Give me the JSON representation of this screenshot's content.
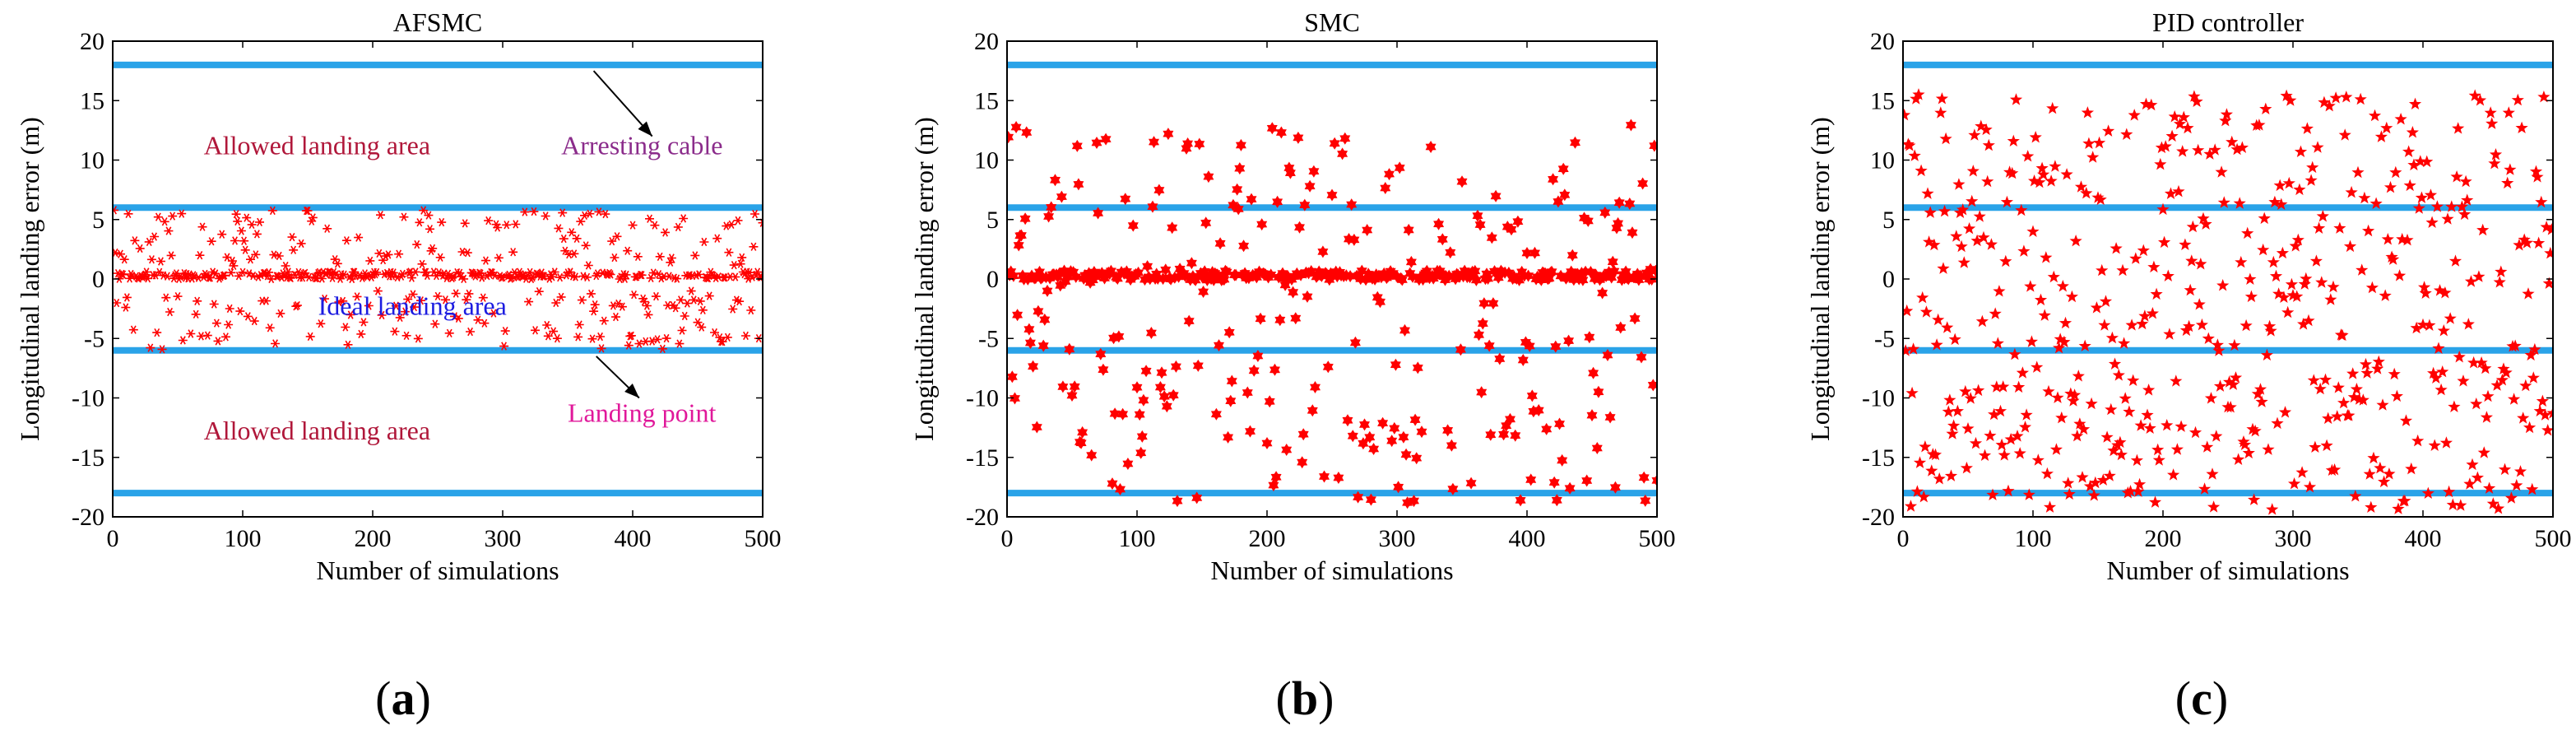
{
  "chart_data": [
    {
      "type": "scatter",
      "panel_label": {
        "open": "(",
        "letter": "a",
        "close": ")"
      },
      "title": "AFSMC",
      "xlabel": "Number of simulations",
      "ylabel": "Longitudinal landing error (m)",
      "xlim": [
        0,
        500
      ],
      "ylim": [
        -20,
        20
      ],
      "xticks": [
        0,
        100,
        200,
        300,
        400,
        500
      ],
      "yticks": [
        -20,
        -15,
        -10,
        -5,
        0,
        5,
        10,
        15,
        20
      ],
      "hlines": [
        18,
        6,
        -6,
        -18
      ],
      "line_color": "#2aa3e8",
      "marker": "asterisk",
      "marker_color": "#ff0000",
      "series": [
        {
          "name": "Landing point",
          "center_fraction": 0.5,
          "center_spread": 0.3,
          "wide_range": [
            -6,
            6
          ]
        }
      ],
      "annotations": [
        {
          "text": "Allowed landing area",
          "x": 70,
          "y": 10.5,
          "color": "#b0173a"
        },
        {
          "text": "Arresting cable",
          "x": 345,
          "y": 10.5,
          "color": "#8b2c8b"
        },
        {
          "text": "Ideal landing area",
          "x": 158,
          "y": -3,
          "color": "#1c1ce0"
        },
        {
          "text": "Allowed landing area",
          "x": 70,
          "y": -13.5,
          "color": "#b0173a"
        },
        {
          "text": "Landing point",
          "x": 350,
          "y": -12,
          "color": "#e0189a"
        }
      ],
      "arrows": [
        {
          "from": [
            370,
            17.5
          ],
          "to": [
            415,
            12
          ]
        },
        {
          "from": [
            372,
            -6.5
          ],
          "to": [
            405,
            -10
          ]
        }
      ]
    },
    {
      "type": "scatter",
      "panel_label": {
        "open": "(",
        "letter": "b",
        "close": ")"
      },
      "title": "SMC",
      "xlabel": "Number of simulations",
      "ylabel": "Longitudinal landing error (m)",
      "xlim": [
        0,
        500
      ],
      "ylim": [
        -20,
        20
      ],
      "xticks": [
        0,
        100,
        200,
        300,
        400,
        500
      ],
      "yticks": [
        -20,
        -15,
        -10,
        -5,
        0,
        5,
        10,
        15,
        20
      ],
      "hlines": [
        18,
        6,
        -6,
        -18
      ],
      "line_color": "#2aa3e8",
      "marker": "hexagram",
      "marker_color": "#ff0000",
      "series": [
        {
          "name": "Landing point",
          "center_fraction": 0.45,
          "center_spread": 0.4,
          "wide_range": [
            -19,
            13
          ]
        }
      ]
    },
    {
      "type": "scatter",
      "panel_label": {
        "open": "(",
        "letter": "c",
        "close": ")"
      },
      "title": "PID controller",
      "xlabel": "Number of simulations",
      "ylabel": "Longitudinal landing error (m)",
      "xlim": [
        0,
        500
      ],
      "ylim": [
        -20,
        20
      ],
      "xticks": [
        0,
        100,
        200,
        300,
        400,
        500
      ],
      "yticks": [
        -20,
        -15,
        -10,
        -5,
        0,
        5,
        10,
        15,
        20
      ],
      "hlines": [
        18,
        6,
        -6,
        -18
      ],
      "line_color": "#2aa3e8",
      "marker": "pentagram",
      "marker_color": "#ff0000",
      "series": [
        {
          "name": "Landing point",
          "center_fraction": 0.0,
          "center_spread": 0,
          "wide_range": [
            -19.5,
            15.5
          ]
        }
      ]
    }
  ]
}
